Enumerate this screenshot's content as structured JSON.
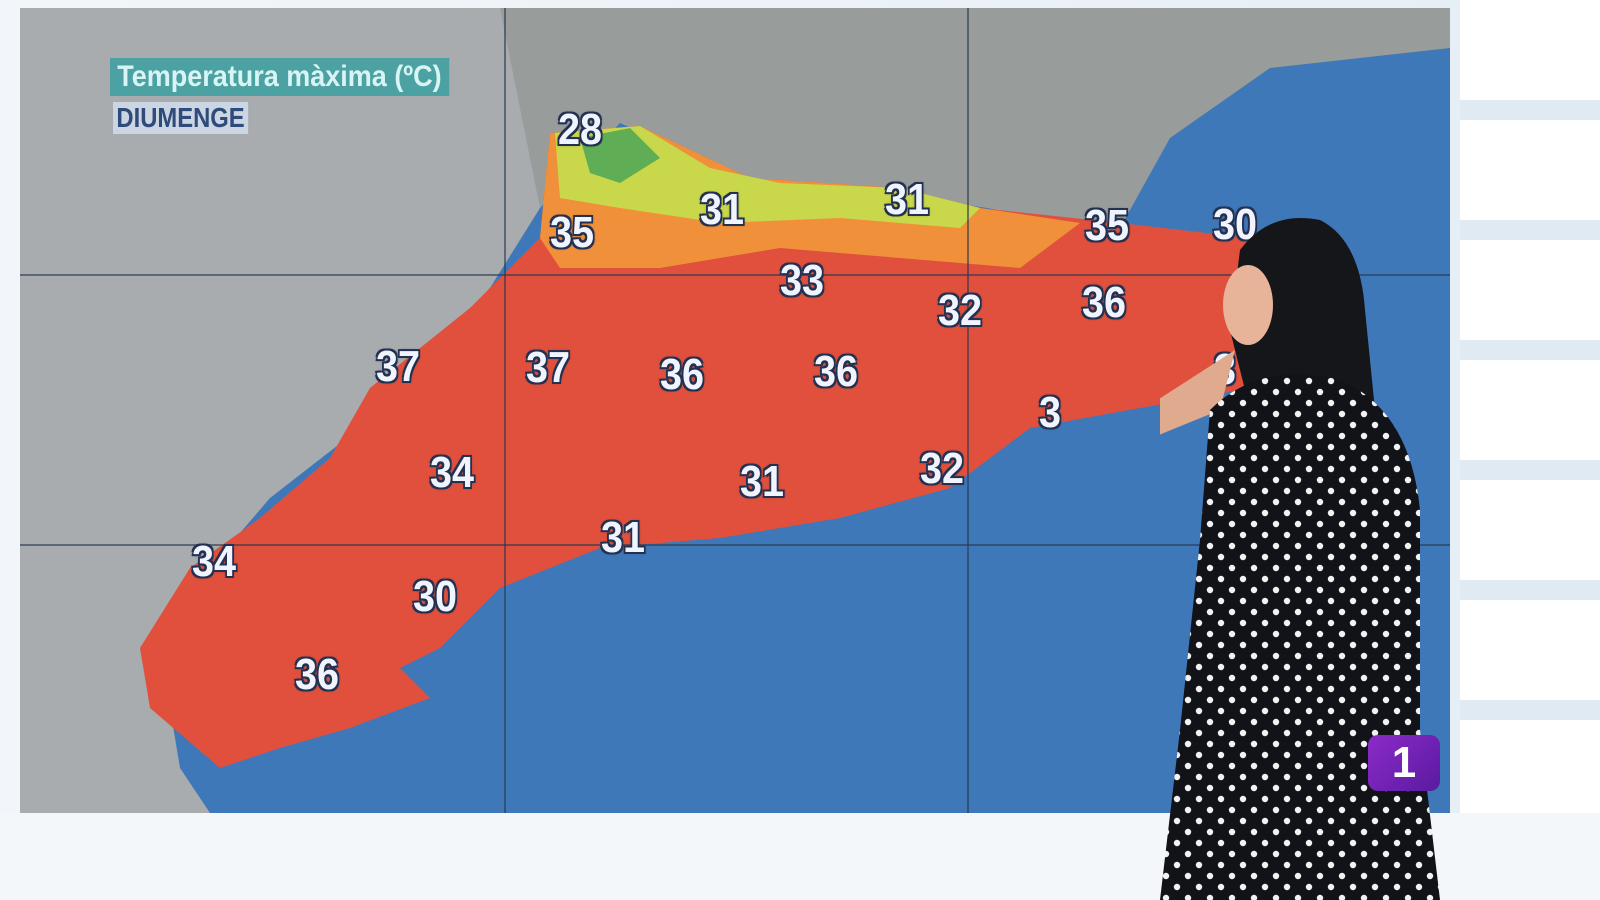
{
  "map": {
    "title": "Temperatura màxima (ºC)",
    "day": "DIUMENGE",
    "colors": {
      "sea": "#3f78b8",
      "land_outside": "#a9adaf",
      "hot": "#e0503c",
      "warm": "#f08a3a",
      "mild": "#c8d84a"
    },
    "temperatures": [
      {
        "text": "28"
      },
      {
        "text": "35"
      },
      {
        "text": "31"
      },
      {
        "text": "31"
      },
      {
        "text": "35"
      },
      {
        "text": "30"
      },
      {
        "text": "33"
      },
      {
        "text": "32"
      },
      {
        "text": "36"
      },
      {
        "text": "37"
      },
      {
        "text": "37"
      },
      {
        "text": "36"
      },
      {
        "text": "36"
      },
      {
        "text": "3"
      },
      {
        "text": "3"
      },
      {
        "text": "34"
      },
      {
        "text": "31"
      },
      {
        "text": "32"
      },
      {
        "text": "31"
      },
      {
        "text": "34"
      },
      {
        "text": "30"
      },
      {
        "text": "36"
      }
    ]
  },
  "broadcast": {
    "channel_logo": "1",
    "logo_color": "#7a24b8"
  }
}
